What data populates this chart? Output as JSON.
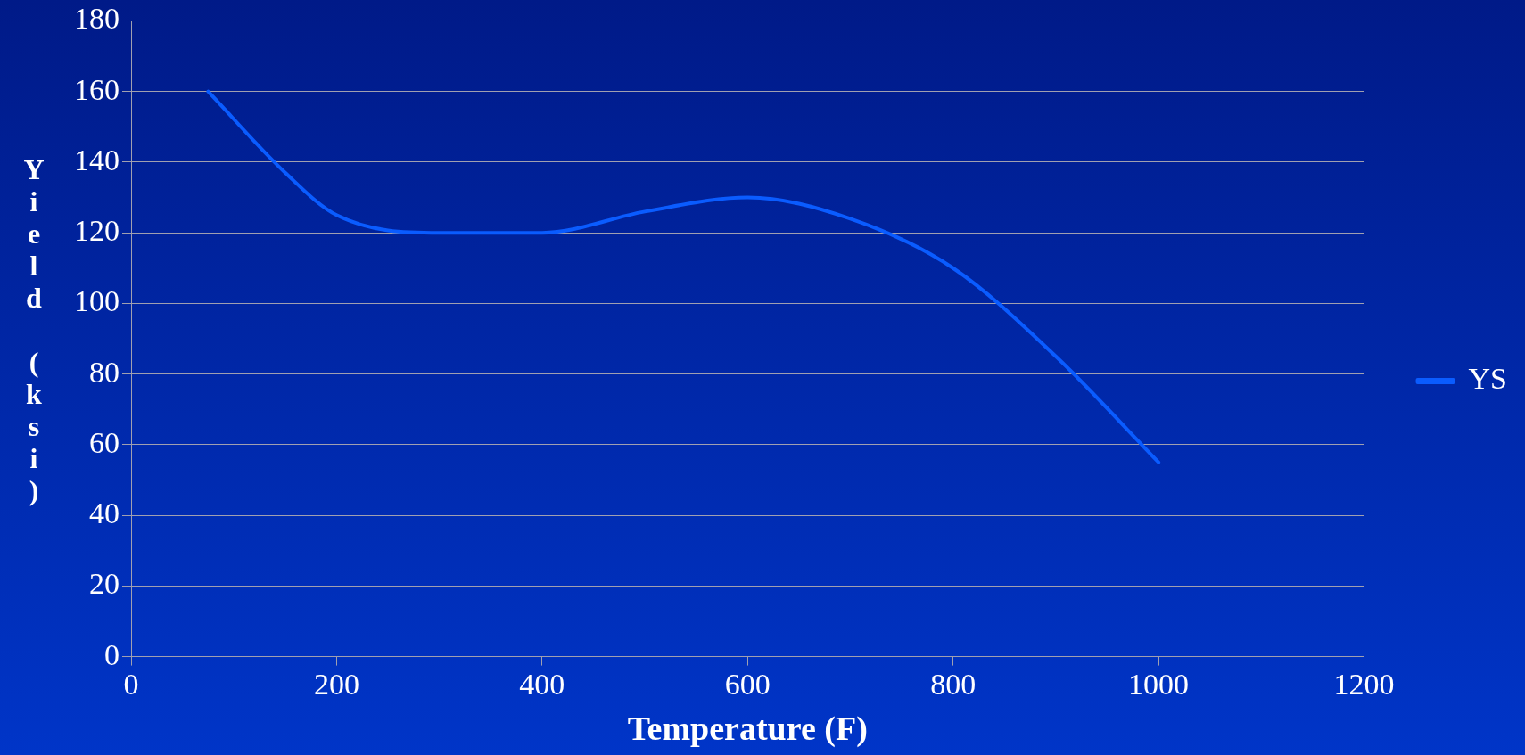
{
  "chart_data": {
    "type": "line",
    "xlabel": "Temperature (F)",
    "ylabel": "Yield (ksi)",
    "x": [
      75,
      150,
      200,
      300,
      400,
      500,
      600,
      700,
      800,
      900,
      1000
    ],
    "series": [
      {
        "name": "YS",
        "color": "#0a5cff",
        "values": [
          160,
          137,
          125,
          120,
          120,
          126,
          130,
          124,
          110,
          85,
          55
        ]
      }
    ],
    "xlim": [
      0,
      1200
    ],
    "xticks": [
      0,
      200,
      400,
      600,
      800,
      1000,
      1200
    ],
    "ylim": [
      0,
      180
    ],
    "yticks": [
      0,
      20,
      40,
      60,
      80,
      100,
      120,
      140,
      160,
      180
    ],
    "grid": "y",
    "legend": "right",
    "marker": "none",
    "line_style": "solid"
  }
}
